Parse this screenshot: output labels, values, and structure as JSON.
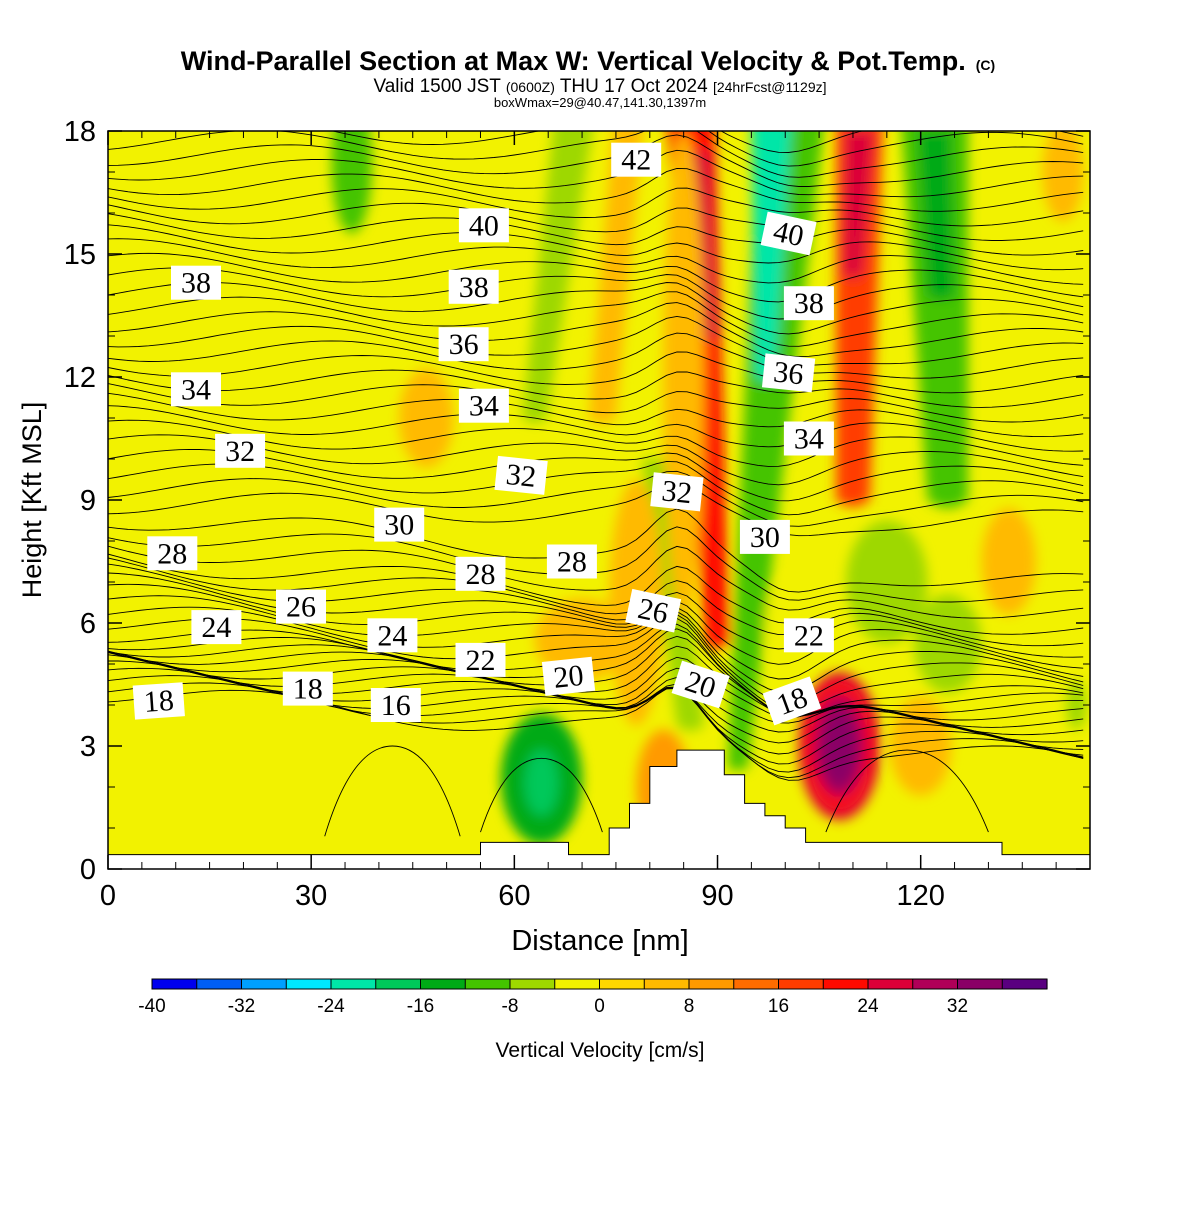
{
  "chart_data": {
    "type": "heatmap",
    "title": "Wind-Parallel Section at Max W: Vertical Velocity & Pot.Temp.",
    "title_mark": "(C)",
    "subtitle": {
      "valid": "Valid 1500 JST",
      "utc": "(0600Z)",
      "date": "THU 17 Oct 2024",
      "forecast": "[24hrFcst@1129z]"
    },
    "box_info": "boxWmax=29@40.47,141.30,1397m",
    "xlabel": "Distance [nm]",
    "ylabel": "Height [Kft MSL]",
    "xlim": [
      0,
      145
    ],
    "ylim": [
      0,
      18
    ],
    "x_ticks": [
      0,
      30,
      60,
      90,
      120
    ],
    "y_ticks": [
      0,
      3,
      6,
      9,
      12,
      15,
      18
    ],
    "terrain": [
      [
        0,
        0.35
      ],
      [
        55,
        0.35
      ],
      [
        55,
        0.65
      ],
      [
        68,
        0.65
      ],
      [
        68,
        0.35
      ],
      [
        74,
        0.35
      ],
      [
        74,
        1.0
      ],
      [
        77,
        1.0
      ],
      [
        77,
        1.6
      ],
      [
        80,
        1.6
      ],
      [
        80,
        2.5
      ],
      [
        84,
        2.5
      ],
      [
        84,
        2.9
      ],
      [
        91,
        2.9
      ],
      [
        91,
        2.3
      ],
      [
        94,
        2.3
      ],
      [
        94,
        1.6
      ],
      [
        97,
        1.6
      ],
      [
        97,
        1.3
      ],
      [
        100,
        1.3
      ],
      [
        100,
        1.0
      ],
      [
        103,
        1.0
      ],
      [
        103,
        0.65
      ],
      [
        132,
        0.65
      ],
      [
        132,
        0.35
      ],
      [
        145,
        0.35
      ]
    ],
    "colorbar": {
      "label": "Vertical Velocity [cm/s]",
      "min": -40,
      "max": 40,
      "step": 4,
      "tick_values": [
        -40,
        -32,
        -24,
        -16,
        -8,
        0,
        8,
        16,
        24,
        32
      ],
      "tick_labels": [
        "-40",
        "-32",
        "-24",
        "-16",
        "-8",
        "0",
        "8",
        "16",
        "24",
        "32"
      ],
      "colors": [
        "#0000ee",
        "#005ef5",
        "#00a0ff",
        "#00e8ff",
        "#00e6a8",
        "#00c85a",
        "#00aa16",
        "#44c400",
        "#9ed800",
        "#f2f200",
        "#ffd700",
        "#ffba00",
        "#ff9a00",
        "#ff6c00",
        "#ff3c00",
        "#ff0a00",
        "#dc0038",
        "#b00058",
        "#8a0066",
        "#5a0080"
      ]
    },
    "velocity_features": [
      {
        "x": 36,
        "y": 17.2,
        "rx": 3,
        "ry": 1.7,
        "v": -9
      },
      {
        "x": 64,
        "y": 2.2,
        "rx": 6,
        "ry": 1.6,
        "v": -15
      },
      {
        "x": 62,
        "y": 2.2,
        "rx": 2,
        "ry": 0.7,
        "v": -7
      },
      {
        "x": 108,
        "y": 3.0,
        "rx": 6,
        "ry": 1.8,
        "v": 25
      },
      {
        "x": 108,
        "y": 2.9,
        "rx": 2,
        "ry": 0.6,
        "v": 12
      },
      {
        "x": 120,
        "y": 3.0,
        "rx": 4.5,
        "ry": 1.2,
        "v": 6
      },
      {
        "x": 82,
        "y": 2.0,
        "rx": 4,
        "ry": 1.4,
        "v": 10
      },
      {
        "x": 47,
        "y": 11,
        "rx": 4,
        "ry": 1.2,
        "v": 5
      },
      {
        "x": 70,
        "y": 5.6,
        "rx": 7,
        "ry": 1.0,
        "v": 5
      },
      {
        "x": 78,
        "y": 6.5,
        "rx": 4,
        "ry": 3,
        "v": 5
      },
      {
        "x": 85,
        "y": 12,
        "rx": 3,
        "ry": 6,
        "v": 4
      },
      {
        "x": 115,
        "y": 7,
        "rx": 6,
        "ry": 1.5,
        "v": -6
      },
      {
        "x": 124,
        "y": 5.5,
        "rx": 5,
        "ry": 1.2,
        "v": -5
      },
      {
        "x": 133,
        "y": 7.5,
        "rx": 4,
        "ry": 1.3,
        "v": 5
      },
      {
        "x": 100,
        "y": 6,
        "rx": 3,
        "ry": 1.0,
        "v": -4
      },
      {
        "x": 143,
        "y": 4,
        "rx": 1.5,
        "ry": 0.6,
        "v": -6
      },
      {
        "x": 141,
        "y": 17,
        "rx": 3,
        "ry": 1.2,
        "v": 5
      }
    ],
    "velocity_plumes": [
      {
        "top": [
          86,
          18.5
        ],
        "bot": [
          90,
          5.5
        ],
        "w_top": 3.5,
        "w_bot": 1.8,
        "v": 20
      },
      {
        "top": [
          87,
          17.5
        ],
        "bot": [
          89,
          13
        ],
        "w_top": 2,
        "w_bot": 1.2,
        "v": 26
      },
      {
        "top": [
          101,
          18.5
        ],
        "bot": [
          93,
          2.5
        ],
        "w_top": 5,
        "w_bot": 1.5,
        "v": -12
      },
      {
        "top": [
          98,
          18.5
        ],
        "bot": [
          97,
          12
        ],
        "w_top": 3,
        "w_bot": 1.5,
        "v": -22
      },
      {
        "top": [
          69,
          18.5
        ],
        "bot": [
          63,
          11
        ],
        "w_top": 3,
        "w_bot": 1.8,
        "v": -8
      },
      {
        "top": [
          81,
          10
        ],
        "bot": [
          86,
          3.5
        ],
        "w_top": 2.2,
        "w_bot": 2,
        "v": -8
      },
      {
        "top": [
          111,
          18.5
        ],
        "bot": [
          110,
          9
        ],
        "w_top": 3.5,
        "w_bot": 2.5,
        "v": 18
      },
      {
        "top": [
          111,
          18
        ],
        "bot": [
          110,
          14.5
        ],
        "w_top": 2.2,
        "w_bot": 1.5,
        "v": 24
      },
      {
        "top": [
          122,
          18.5
        ],
        "bot": [
          124,
          9
        ],
        "w_top": 5,
        "w_bot": 3,
        "v": -10
      },
      {
        "top": [
          122,
          18
        ],
        "bot": [
          123,
          14
        ],
        "w_top": 2.5,
        "w_bot": 2,
        "v": -16
      },
      {
        "top": [
          77,
          18.5
        ],
        "bot": [
          73,
          11
        ],
        "w_top": 2.2,
        "w_bot": 2,
        "v": 4
      }
    ],
    "contour_labels": [
      {
        "x": 78,
        "y": 17.3,
        "text": "42",
        "angle": 0
      },
      {
        "x": 55.5,
        "y": 15.7,
        "text": "40",
        "angle": 0
      },
      {
        "x": 100.5,
        "y": 15.5,
        "text": "40",
        "angle": 12
      },
      {
        "x": 13,
        "y": 14.3,
        "text": "38",
        "angle": 0
      },
      {
        "x": 54,
        "y": 14.2,
        "text": "38",
        "angle": 0
      },
      {
        "x": 103.5,
        "y": 13.8,
        "text": "38",
        "angle": 0
      },
      {
        "x": 52.5,
        "y": 12.8,
        "text": "36",
        "angle": 0
      },
      {
        "x": 100.5,
        "y": 12.1,
        "text": "36",
        "angle": 6
      },
      {
        "x": 13,
        "y": 11.7,
        "text": "34",
        "angle": 0
      },
      {
        "x": 55.5,
        "y": 11.3,
        "text": "34",
        "angle": 0
      },
      {
        "x": 103.5,
        "y": 10.5,
        "text": "34",
        "angle": 0
      },
      {
        "x": 19.5,
        "y": 10.2,
        "text": "32",
        "angle": 0
      },
      {
        "x": 61,
        "y": 9.6,
        "text": "32",
        "angle": 6
      },
      {
        "x": 84,
        "y": 9.2,
        "text": "32",
        "angle": 6
      },
      {
        "x": 43,
        "y": 8.4,
        "text": "30",
        "angle": 0
      },
      {
        "x": 97,
        "y": 8.1,
        "text": "30",
        "angle": 0
      },
      {
        "x": 9.5,
        "y": 7.7,
        "text": "28",
        "angle": 0
      },
      {
        "x": 55,
        "y": 7.2,
        "text": "28",
        "angle": 0
      },
      {
        "x": 68.5,
        "y": 7.5,
        "text": "28",
        "angle": 0
      },
      {
        "x": 28.5,
        "y": 6.4,
        "text": "26",
        "angle": 0
      },
      {
        "x": 80.5,
        "y": 6.3,
        "text": "26",
        "angle": 12
      },
      {
        "x": 16,
        "y": 5.9,
        "text": "24",
        "angle": 0
      },
      {
        "x": 42,
        "y": 5.7,
        "text": "24",
        "angle": 0
      },
      {
        "x": 55,
        "y": 5.1,
        "text": "22",
        "angle": 0
      },
      {
        "x": 103.5,
        "y": 5.7,
        "text": "22",
        "angle": 0
      },
      {
        "x": 68,
        "y": 4.7,
        "text": "20",
        "angle": -6
      },
      {
        "x": 87.5,
        "y": 4.5,
        "text": "20",
        "angle": 18
      },
      {
        "x": 7.5,
        "y": 4.1,
        "text": "18",
        "angle": -4
      },
      {
        "x": 29.5,
        "y": 4.4,
        "text": "18",
        "angle": 0
      },
      {
        "x": 101,
        "y": 4.1,
        "text": "18",
        "angle": -20
      },
      {
        "x": 42.5,
        "y": 4.0,
        "text": "16",
        "angle": 0
      }
    ]
  }
}
